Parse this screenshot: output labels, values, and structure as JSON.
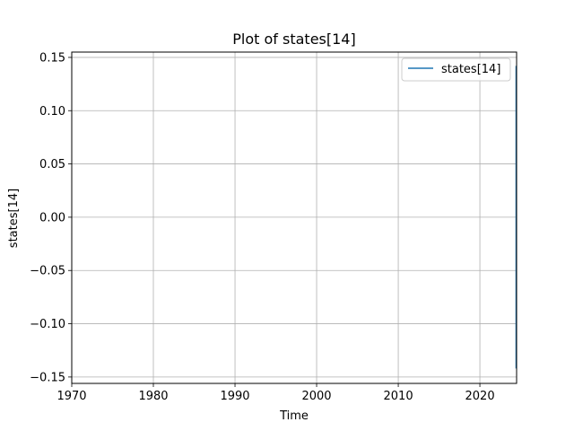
{
  "chart_data": {
    "type": "line",
    "title": "Plot of states[14]",
    "xlabel": "Time",
    "ylabel": "states[14]",
    "x_scale": "date",
    "xlim": [
      "1970-01-01",
      "2024-07-01"
    ],
    "ylim": [
      -0.156,
      0.155
    ],
    "xticks": [
      {
        "value": "1970-01-01",
        "label": "1970"
      },
      {
        "value": "1980-01-01",
        "label": "1980"
      },
      {
        "value": "1990-01-01",
        "label": "1990"
      },
      {
        "value": "2000-01-01",
        "label": "2000"
      },
      {
        "value": "2010-01-01",
        "label": "2010"
      },
      {
        "value": "2020-01-01",
        "label": "2020"
      }
    ],
    "yticks": [
      {
        "value": 0.15,
        "label": "0.15"
      },
      {
        "value": 0.1,
        "label": "0.10"
      },
      {
        "value": 0.05,
        "label": "0.05"
      },
      {
        "value": 0.0,
        "label": "0.00"
      },
      {
        "value": -0.05,
        "label": "−0.05"
      },
      {
        "value": -0.1,
        "label": "−0.10"
      },
      {
        "value": -0.15,
        "label": "−0.15"
      }
    ],
    "grid": true,
    "legend": {
      "position": "top-right"
    },
    "series": [
      {
        "name": "states[14]",
        "color": "#1f77b4",
        "x": [
          "2024-06-28",
          "2024-06-28",
          "2024-06-29",
          "2024-06-29",
          "2024-06-30",
          "2024-06-30"
        ],
        "y": [
          -0.142,
          0.14,
          -0.14,
          0.142,
          -0.141,
          0.141
        ]
      }
    ]
  }
}
